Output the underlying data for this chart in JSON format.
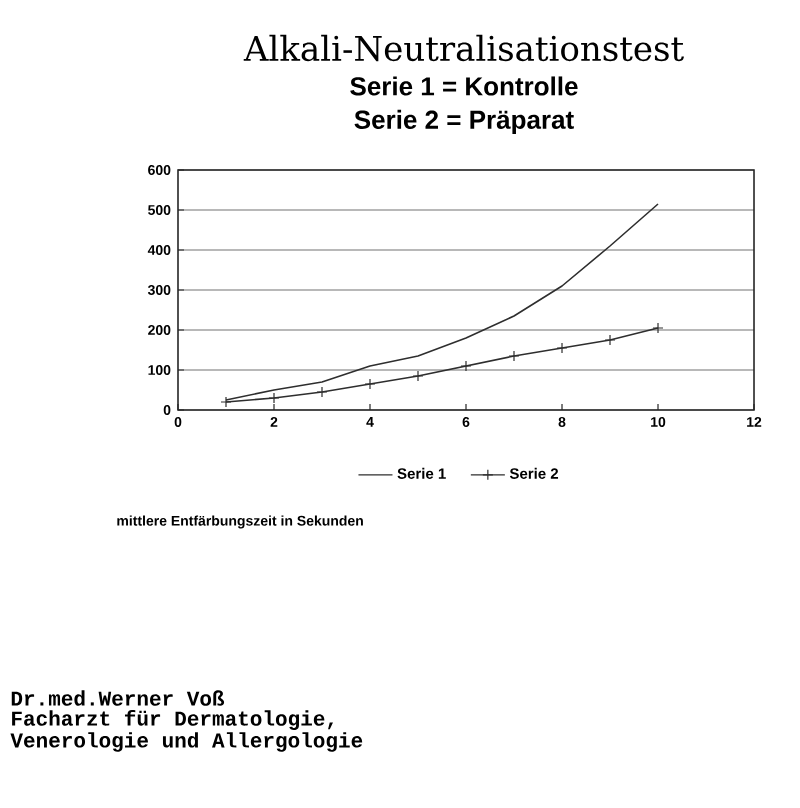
{
  "chart_data": {
    "type": "line",
    "title": "Alkali-Neutralisationstest",
    "x": [
      1,
      2,
      3,
      4,
      5,
      6,
      7,
      8,
      9,
      10
    ],
    "series": [
      {
        "name": "Serie 1",
        "color": "#2e2e2e",
        "marker": "none",
        "values": [
          25,
          50,
          70,
          110,
          135,
          180,
          235,
          310,
          410,
          515
        ]
      },
      {
        "name": "Serie 2",
        "color": "#2e2e2e",
        "marker": "cross",
        "values": [
          20,
          30,
          45,
          65,
          85,
          110,
          135,
          155,
          175,
          205
        ]
      }
    ],
    "xlim": [
      0,
      12
    ],
    "ylim": [
      0,
      600
    ],
    "xticks": [
      0,
      2,
      4,
      6,
      8,
      10,
      12
    ],
    "yticks": [
      0,
      100,
      200,
      300,
      400,
      500,
      600
    ],
    "grid": "y",
    "legend": "bottom",
    "line_style": "solid",
    "annotations": [
      "Serie 1 = Kontrolle",
      "Serie 2 = Präparat",
      "mittlere Entfärbungszeit in Sekunden",
      "Dr.med.Werner Voß",
      "Facharzt für Dermatologie,",
      "Venerologie und Allergologie"
    ]
  }
}
